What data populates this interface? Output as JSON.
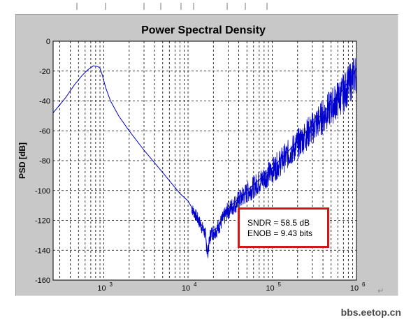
{
  "chart_data": {
    "type": "line",
    "title": "Power Spectral Density",
    "xlabel": "",
    "ylabel": "PSD [dB]",
    "xscale": "log",
    "xlim": [
      250,
      1000000
    ],
    "ylim": [
      -160,
      0
    ],
    "grid": true,
    "grid_style": "dashed",
    "line_color": "#0000cc",
    "y_ticks": [
      "0",
      "-20",
      "-40",
      "-60",
      "-80",
      "-100",
      "-120",
      "-140",
      "-160"
    ],
    "y_tick_values": [
      0,
      -20,
      -40,
      -60,
      -80,
      -100,
      -120,
      -140,
      -160
    ],
    "x_ticks": [
      {
        "base": "10",
        "exp": "3",
        "value": 1000
      },
      {
        "base": "10",
        "exp": "4",
        "value": 10000
      },
      {
        "base": "10",
        "exp": "5",
        "value": 100000
      },
      {
        "base": "10",
        "exp": "6",
        "value": 1000000
      }
    ],
    "series": [
      {
        "values": [
          [
            250,
            -48
          ],
          [
            350,
            -38
          ],
          [
            450,
            -29
          ],
          [
            550,
            -23
          ],
          [
            650,
            -19
          ],
          [
            750,
            -16.5
          ],
          [
            850,
            -17
          ],
          [
            900,
            -18
          ],
          [
            950,
            -22
          ],
          [
            1050,
            -31
          ],
          [
            1200,
            -40
          ],
          [
            1500,
            -50
          ],
          [
            2000,
            -60
          ],
          [
            3000,
            -73
          ],
          [
            5000,
            -88
          ],
          [
            8000,
            -102
          ],
          [
            10000,
            -107
          ],
          [
            13000,
            -118
          ],
          [
            16000,
            -128
          ],
          [
            17000,
            -142
          ],
          [
            18500,
            -128
          ],
          [
            22000,
            -125
          ],
          [
            30000,
            -112
          ],
          [
            50000,
            -100
          ],
          [
            100000,
            -85
          ],
          [
            200000,
            -67
          ],
          [
            400000,
            -48
          ],
          [
            700000,
            -32
          ],
          [
            1000000,
            -18
          ]
        ]
      }
    ],
    "annotation": {
      "line1": "SNDR = 58.5 dB",
      "line2": "ENOB = 9.43 bits",
      "border_color": "#d01818"
    }
  },
  "watermark": "bbs.eetop.cn",
  "return_glyph": "↵"
}
